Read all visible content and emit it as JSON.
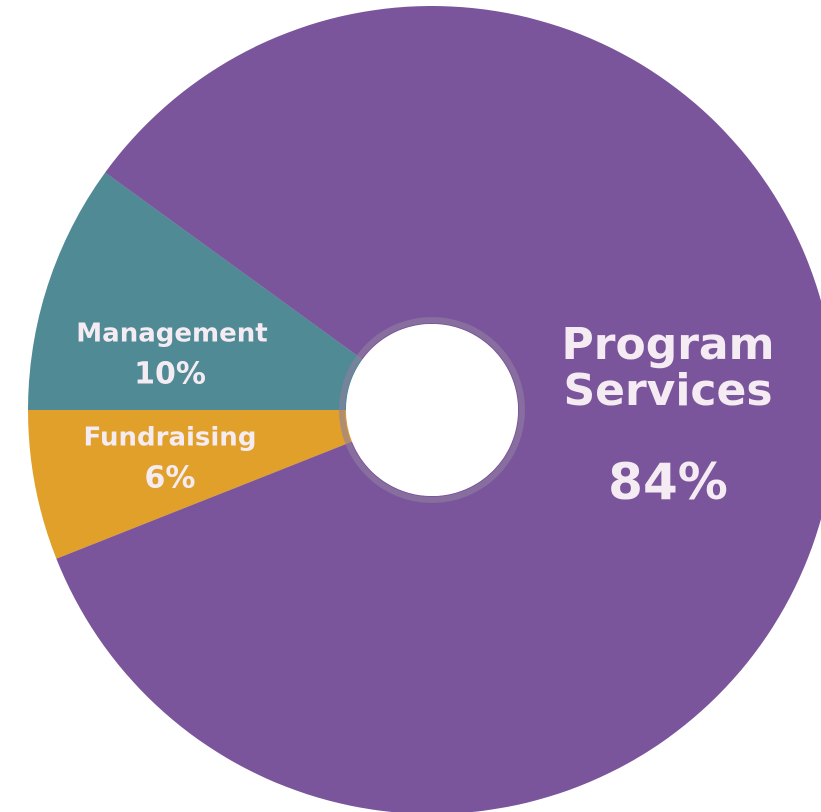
{
  "chart_data": {
    "type": "donut",
    "categories": [
      "Fundraising",
      "Management",
      "Program Services"
    ],
    "values": [
      6,
      10,
      84
    ],
    "value_labels": [
      "6%",
      "10%",
      "84%"
    ],
    "colors": [
      "#e0a02a",
      "#4f8a95",
      "#7b559c"
    ]
  }
}
